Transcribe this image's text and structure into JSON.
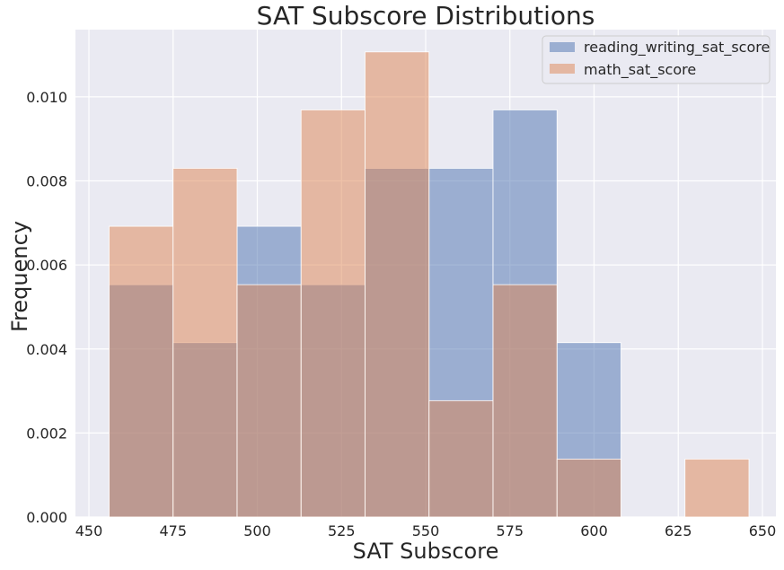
{
  "chart_data": {
    "type": "bar",
    "title": "SAT Subscore Distributions",
    "xlabel": "SAT Subscore",
    "ylabel": "Frequency",
    "xlim": [
      446,
      654
    ],
    "ylim": [
      0,
      0.0116
    ],
    "xticks": [
      450,
      475,
      500,
      525,
      550,
      575,
      600,
      625,
      650
    ],
    "xtick_labels": [
      "450",
      "475",
      "500",
      "525",
      "550",
      "575",
      "600",
      "625",
      "650"
    ],
    "yticks": [
      0,
      0.002,
      0.004,
      0.006,
      0.008,
      0.01
    ],
    "ytick_labels": [
      "0.000",
      "0.002",
      "0.004",
      "0.006",
      "0.008",
      "0.010"
    ],
    "grid": true,
    "legend_position": "top-right",
    "bin_edges": [
      456,
      475,
      494,
      513,
      532,
      551,
      570,
      589,
      608,
      627,
      646
    ],
    "series": [
      {
        "name": "reading_writing_sat_score",
        "color": "#4c72b0",
        "values": [
          0.00553,
          0.00415,
          0.00692,
          0.00553,
          0.0083,
          0.0083,
          0.00969,
          0.00415,
          0,
          0
        ]
      },
      {
        "name": "math_sat_score",
        "color": "#dd8452",
        "values": [
          0.00692,
          0.0083,
          0.00553,
          0.00969,
          0.01107,
          0.00277,
          0.00553,
          0.00138,
          0,
          0.00138
        ]
      }
    ]
  }
}
